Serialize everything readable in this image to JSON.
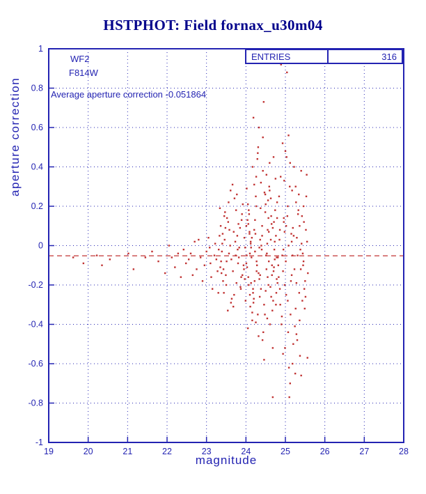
{
  "title": "HSTPHOT: Field fornax_u30m04",
  "annotations": {
    "camera": "WF2",
    "filter": "F814W",
    "average_line": "Average aperture correction -0.051864"
  },
  "stats_box": {
    "label": "ENTRIES",
    "value": "316"
  },
  "colors": {
    "title": "#00008b",
    "axis_blue": "#2323b2",
    "point_red": "#c03232"
  },
  "chart_data": {
    "type": "scatter",
    "title": "HSTPHOT: Field fornax_u30m04",
    "xlabel": "magnitude",
    "ylabel": "aperture correction",
    "xlim": [
      19,
      28
    ],
    "ylim": [
      -1,
      1
    ],
    "grid": true,
    "entries": 316,
    "mean_line_y": -0.051864,
    "axis_color": "#2323b2",
    "point_color": "#c03232",
    "x_ticks": [
      19,
      20,
      21,
      22,
      23,
      24,
      25,
      26,
      27,
      28
    ],
    "x_tick_labels": [
      "19",
      "20",
      "21",
      "22",
      "23",
      "24",
      "25",
      "26",
      "27",
      "28"
    ],
    "y_ticks": [
      -1,
      -0.8,
      -0.6,
      -0.4,
      -0.2,
      0,
      0.2,
      0.4,
      0.6,
      0.8,
      1
    ],
    "y_tick_labels": [
      "-1",
      "-0.8",
      "-0.6",
      "-0.4",
      "-0.2",
      "0",
      "0.2",
      "0.4",
      "0.6",
      "0.8",
      "1"
    ],
    "points": [
      [
        19.62,
        -0.06
      ],
      [
        19.88,
        -0.09
      ],
      [
        20.22,
        -0.05
      ],
      [
        20.35,
        -0.1
      ],
      [
        20.55,
        -0.07
      ],
      [
        21.02,
        -0.04
      ],
      [
        21.15,
        -0.12
      ],
      [
        21.45,
        -0.06
      ],
      [
        21.62,
        -0.03
      ],
      [
        21.78,
        -0.08
      ],
      [
        21.95,
        -0.14
      ],
      [
        22.05,
        0.0
      ],
      [
        22.12,
        -0.06
      ],
      [
        22.2,
        -0.11
      ],
      [
        22.28,
        -0.04
      ],
      [
        22.35,
        -0.16
      ],
      [
        22.42,
        -0.02
      ],
      [
        22.48,
        -0.09
      ],
      [
        22.55,
        -0.07
      ],
      [
        22.6,
        -0.04
      ],
      [
        22.65,
        -0.15
      ],
      [
        22.7,
        0.02
      ],
      [
        22.75,
        -0.12
      ],
      [
        22.8,
        0.03
      ],
      [
        22.85,
        -0.06
      ],
      [
        22.9,
        -0.18
      ],
      [
        22.95,
        -0.1
      ],
      [
        23.0,
        -0.03
      ],
      [
        23.05,
        0.04
      ],
      [
        23.08,
        -0.01
      ],
      [
        23.1,
        -0.09
      ],
      [
        23.12,
        -0.16
      ],
      [
        23.15,
        -0.22
      ],
      [
        23.2,
        -0.05
      ],
      [
        23.22,
        0.01
      ],
      [
        23.25,
        -0.07
      ],
      [
        23.28,
        -0.13
      ],
      [
        23.3,
        -0.24
      ],
      [
        23.31,
        -0.02
      ],
      [
        23.55,
        0.12
      ],
      [
        23.42,
        -0.18
      ],
      [
        23.78,
        0.05
      ],
      [
        23.64,
        -0.27
      ],
      [
        23.9,
        0.16
      ],
      [
        23.37,
        -0.08
      ],
      [
        23.71,
        0.24
      ],
      [
        23.49,
        -0.15
      ],
      [
        23.83,
        -0.01
      ],
      [
        23.58,
        0.08
      ],
      [
        23.95,
        -0.12
      ],
      [
        23.34,
        0.19
      ],
      [
        23.68,
        -0.31
      ],
      [
        23.46,
        0.03
      ],
      [
        23.8,
        -0.09
      ],
      [
        23.52,
        0.14
      ],
      [
        23.87,
        -0.22
      ],
      [
        23.4,
        0.01
      ],
      [
        23.74,
        -0.05
      ],
      [
        23.61,
        0.28
      ],
      [
        23.97,
        -0.17
      ],
      [
        23.35,
        -0.11
      ],
      [
        23.69,
        0.07
      ],
      [
        23.44,
        -0.24
      ],
      [
        23.81,
        0.11
      ],
      [
        23.57,
        -0.04
      ],
      [
        23.92,
        0.21
      ],
      [
        23.38,
        -0.14
      ],
      [
        23.73,
        0.02
      ],
      [
        23.5,
        -0.2
      ],
      [
        23.85,
        0.09
      ],
      [
        23.63,
        -0.07
      ],
      [
        23.99,
        -0.28
      ],
      [
        23.33,
        0.05
      ],
      [
        23.67,
        -0.13
      ],
      [
        23.47,
        0.17
      ],
      [
        23.79,
        -0.02
      ],
      [
        23.54,
        -0.33
      ],
      [
        23.89,
        0.13
      ],
      [
        23.41,
        0.06
      ],
      [
        23.76,
        -0.19
      ],
      [
        23.6,
        0.0
      ],
      [
        23.94,
        -0.1
      ],
      [
        23.36,
        0.1
      ],
      [
        23.7,
        -0.25
      ],
      [
        23.45,
        0.15
      ],
      [
        23.82,
        -0.06
      ],
      [
        23.56,
        0.22
      ],
      [
        23.91,
        -0.15
      ],
      [
        23.39,
        -0.03
      ],
      [
        23.75,
        0.18
      ],
      [
        23.62,
        -0.29
      ],
      [
        23.96,
        0.04
      ],
      [
        23.43,
        -0.12
      ],
      [
        23.77,
        0.26
      ],
      [
        23.51,
        -0.08
      ],
      [
        23.86,
        -0.21
      ],
      [
        23.66,
        0.31
      ],
      [
        23.98,
        -0.01
      ],
      [
        23.48,
        0.09
      ],
      [
        23.88,
        -0.16
      ],
      [
        24.02,
        -0.05
      ],
      [
        24.41,
        0.1
      ],
      [
        24.18,
        -0.22
      ],
      [
        24.63,
        0.03
      ],
      [
        24.3,
        -0.35
      ],
      [
        24.74,
        0.18
      ],
      [
        24.09,
        0.06
      ],
      [
        24.52,
        -0.12
      ],
      [
        24.25,
        0.25
      ],
      [
        24.69,
        -0.28
      ],
      [
        24.13,
        -0.01
      ],
      [
        24.57,
        0.14
      ],
      [
        24.34,
        -0.17
      ],
      [
        24.78,
        -0.06
      ],
      [
        24.05,
        0.21
      ],
      [
        24.46,
        -0.3
      ],
      [
        24.21,
        0.08
      ],
      [
        24.66,
        -0.1
      ],
      [
        24.38,
        0.32
      ],
      [
        24.8,
        -0.19
      ],
      [
        24.1,
        -0.25
      ],
      [
        24.54,
        0.01
      ],
      [
        24.27,
        -0.08
      ],
      [
        24.71,
        0.12
      ],
      [
        24.16,
        -0.38
      ],
      [
        24.6,
        0.28
      ],
      [
        24.32,
        -0.14
      ],
      [
        24.76,
        0.05
      ],
      [
        24.07,
        -0.2
      ],
      [
        24.49,
        0.17
      ],
      [
        24.23,
        -0.03
      ],
      [
        24.67,
        -0.33
      ],
      [
        24.43,
        0.38
      ],
      [
        24.03,
        -0.11
      ],
      [
        24.58,
        0.07
      ],
      [
        24.35,
        -0.26
      ],
      [
        24.79,
        0.22
      ],
      [
        24.12,
        0.02
      ],
      [
        24.55,
        -0.16
      ],
      [
        24.29,
        0.44
      ],
      [
        24.73,
        -0.07
      ],
      [
        24.19,
        -0.29
      ],
      [
        24.64,
        0.15
      ],
      [
        24.4,
        -0.02
      ],
      [
        24.06,
        0.11
      ],
      [
        24.5,
        -0.23
      ],
      [
        24.26,
        0.35
      ],
      [
        24.7,
        -0.13
      ],
      [
        24.15,
        0.04
      ],
      [
        24.61,
        -0.4
      ],
      [
        24.37,
        0.19
      ],
      [
        24.01,
        -0.09
      ],
      [
        24.47,
        0.27
      ],
      [
        24.22,
        -0.18
      ],
      [
        24.68,
        0.09
      ],
      [
        24.44,
        -0.44
      ],
      [
        24.08,
        0.16
      ],
      [
        24.53,
        -0.04
      ],
      [
        24.31,
        0.5
      ],
      [
        24.77,
        -0.24
      ],
      [
        24.14,
        -0.06
      ],
      [
        24.59,
        0.3
      ],
      [
        24.36,
        -0.15
      ],
      [
        24.04,
        0.13
      ],
      [
        24.48,
        -0.35
      ],
      [
        24.24,
        0.06
      ],
      [
        24.72,
        -0.02
      ],
      [
        24.17,
        0.4
      ],
      [
        24.62,
        -0.21
      ],
      [
        24.39,
        0.0
      ],
      [
        24.11,
        -0.31
      ],
      [
        24.56,
        0.23
      ],
      [
        24.28,
        -0.1
      ],
      [
        24.75,
        0.34
      ],
      [
        24.2,
        -0.27
      ],
      [
        24.65,
        0.11
      ],
      [
        24.42,
        -0.48
      ],
      [
        24.02,
        0.29
      ],
      [
        24.51,
        -0.05
      ],
      [
        24.33,
        0.6
      ],
      [
        24.78,
        -0.17
      ],
      [
        24.09,
        0.07
      ],
      [
        24.54,
        -0.37
      ],
      [
        24.45,
        0.73
      ],
      [
        24.26,
        0.2
      ],
      [
        24.71,
        -0.11
      ],
      [
        24.18,
        -0.24
      ],
      [
        24.6,
        0.42
      ],
      [
        24.34,
        -0.01
      ],
      [
        24.05,
        -0.42
      ],
      [
        24.49,
        0.26
      ],
      [
        24.23,
        0.13
      ],
      [
        24.68,
        -0.52
      ],
      [
        24.41,
        0.05
      ],
      [
        24.13,
        -0.19
      ],
      [
        24.58,
        -0.08
      ],
      [
        24.3,
        0.47
      ],
      [
        24.76,
        -0.3
      ],
      [
        24.07,
        0.18
      ],
      [
        24.52,
        0.36
      ],
      [
        24.27,
        -0.13
      ],
      [
        24.73,
        0.02
      ],
      [
        24.16,
        -0.34
      ],
      [
        24.63,
        0.24
      ],
      [
        24.38,
        -0.22
      ],
      [
        24.01,
        0.1
      ],
      [
        24.46,
        -0.58
      ],
      [
        24.21,
        0.31
      ],
      [
        24.66,
        -0.15
      ],
      [
        24.43,
        0.55
      ],
      [
        24.1,
        -0.04
      ],
      [
        24.55,
        0.08
      ],
      [
        24.32,
        -0.46
      ],
      [
        24.79,
        0.14
      ],
      [
        24.19,
        0.65
      ],
      [
        24.64,
        -0.26
      ],
      [
        24.36,
        0.03
      ],
      [
        24.06,
        -0.16
      ],
      [
        24.5,
        0.21
      ],
      [
        24.25,
        -0.39
      ],
      [
        24.7,
        0.45
      ],
      [
        24.12,
        0.01
      ],
      [
        24.57,
        -0.2
      ],
      [
        24.68,
        -0.77
      ],
      [
        24.82,
        -0.1
      ],
      [
        25.21,
        0.05
      ],
      [
        25.02,
        -0.25
      ],
      [
        25.42,
        0.15
      ],
      [
        24.9,
        -0.4
      ],
      [
        25.31,
        -0.05
      ],
      [
        25.11,
        0.3
      ],
      [
        25.5,
        -0.18
      ],
      [
        24.86,
        0.08
      ],
      [
        25.26,
        -0.32
      ],
      [
        25.06,
        0.2
      ],
      [
        25.46,
        -0.08
      ],
      [
        24.94,
        -0.55
      ],
      [
        25.36,
        0.1
      ],
      [
        25.16,
        -0.15
      ],
      [
        25.55,
        0.02
      ],
      [
        24.88,
        0.35
      ],
      [
        25.28,
        -0.45
      ],
      [
        25.08,
        0.0
      ],
      [
        25.48,
        -0.22
      ],
      [
        24.96,
        0.12
      ],
      [
        25.38,
        -0.02
      ],
      [
        25.18,
        -0.6
      ],
      [
        24.84,
        0.25
      ],
      [
        25.23,
        -0.12
      ],
      [
        25.03,
        0.45
      ],
      [
        25.43,
        -0.28
      ],
      [
        24.92,
        -0.05
      ],
      [
        25.33,
        0.18
      ],
      [
        25.13,
        -0.35
      ],
      [
        25.52,
        0.08
      ],
      [
        24.98,
        -0.2
      ],
      [
        25.4,
        0.38
      ],
      [
        25.2,
        -0.5
      ],
      [
        24.85,
        0.03
      ],
      [
        25.25,
        -0.65
      ],
      [
        25.05,
        0.15
      ],
      [
        25.45,
        -0.1
      ],
      [
        24.93,
        0.52
      ],
      [
        25.35,
        -0.24
      ],
      [
        25.15,
        0.06
      ],
      [
        25.57,
        -0.14
      ],
      [
        24.87,
        -0.3
      ],
      [
        25.27,
        0.22
      ],
      [
        25.07,
        -0.44
      ],
      [
        25.47,
        0.12
      ],
      [
        24.95,
        -0.02
      ],
      [
        25.37,
        -0.56
      ],
      [
        25.17,
        0.28
      ],
      [
        24.83,
        -0.16
      ],
      [
        25.22,
        0.4
      ],
      [
        25.01,
        -0.08
      ],
      [
        25.41,
        0.01
      ],
      [
        24.91,
        -0.36
      ],
      [
        25.32,
        0.16
      ],
      [
        25.12,
        -0.7
      ],
      [
        25.51,
        -0.26
      ],
      [
        24.97,
        0.33
      ],
      [
        25.39,
        -0.12
      ],
      [
        25.19,
        0.09
      ],
      [
        24.89,
        0.92
      ],
      [
        25.24,
        -0.41
      ],
      [
        25.04,
        0.88
      ],
      [
        25.44,
        -0.04
      ],
      [
        24.99,
        -0.52
      ],
      [
        25.34,
        0.26
      ],
      [
        25.14,
        -0.18
      ],
      [
        25.54,
        0.36
      ],
      [
        24.81,
        -0.06
      ],
      [
        25.29,
        0.04
      ],
      [
        25.09,
        -0.62
      ],
      [
        25.49,
        -0.32
      ],
      [
        25.0,
        0.48
      ],
      [
        25.1,
        -0.77
      ],
      [
        25.3,
        -0.48
      ],
      [
        24.96,
        0.14
      ],
      [
        25.06,
        -0.28
      ],
      [
        25.56,
        -0.57
      ],
      [
        25.26,
        0.3
      ],
      [
        24.86,
        -0.22
      ],
      [
        25.16,
        0.02
      ],
      [
        25.46,
        0.2
      ],
      [
        25.36,
        -0.38
      ],
      [
        25.08,
        0.56
      ],
      [
        24.94,
        -0.13
      ],
      [
        25.18,
        -0.05
      ],
      [
        25.53,
        0.25
      ],
      [
        25.02,
        0.1
      ],
      [
        25.28,
        -0.19
      ],
      [
        25.12,
        0.42
      ],
      [
        25.4,
        -0.66
      ],
      [
        24.98,
        0.07
      ]
    ]
  }
}
